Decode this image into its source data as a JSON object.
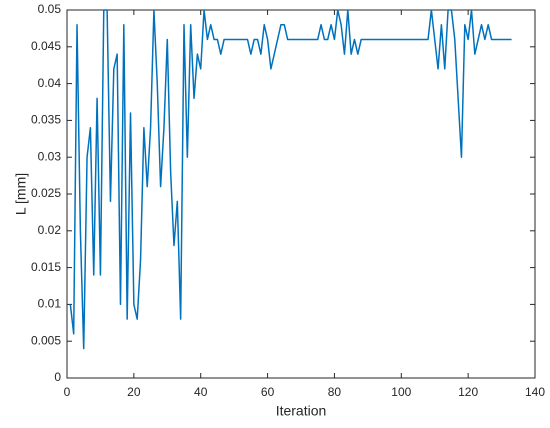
{
  "chart_data": {
    "type": "line",
    "x_label": "Iteration",
    "y_label": "L [mm]",
    "x": [
      1,
      2,
      3,
      4,
      5,
      6,
      7,
      8,
      9,
      10,
      11,
      12,
      13,
      14,
      15,
      16,
      17,
      18,
      19,
      20,
      21,
      22,
      23,
      24,
      25,
      26,
      27,
      28,
      29,
      30,
      31,
      32,
      33,
      34,
      35,
      36,
      37,
      38,
      39,
      40,
      41,
      42,
      43,
      44,
      45,
      46,
      47,
      48,
      49,
      50,
      51,
      52,
      53,
      54,
      55,
      56,
      57,
      58,
      59,
      60,
      61,
      62,
      63,
      64,
      65,
      66,
      67,
      68,
      69,
      70,
      71,
      72,
      73,
      74,
      75,
      76,
      77,
      78,
      79,
      80,
      81,
      82,
      83,
      84,
      85,
      86,
      87,
      88,
      89,
      90,
      91,
      92,
      93,
      94,
      95,
      96,
      97,
      98,
      99,
      100,
      101,
      102,
      103,
      104,
      105,
      106,
      107,
      108,
      109,
      110,
      111,
      112,
      113,
      114,
      115,
      116,
      117,
      118,
      119,
      120,
      121,
      122,
      123,
      124,
      125,
      126,
      127,
      128,
      129,
      130,
      131,
      132,
      133
    ],
    "series": [
      {
        "color": "#0072bd",
        "values": [
          0.01,
          0.006,
          0.048,
          0.02,
          0.004,
          0.03,
          0.034,
          0.014,
          0.038,
          0.014,
          0.05,
          0.05,
          0.024,
          0.042,
          0.044,
          0.01,
          0.048,
          0.008,
          0.036,
          0.01,
          0.008,
          0.016,
          0.034,
          0.026,
          0.034,
          0.05,
          0.04,
          0.026,
          0.034,
          0.046,
          0.028,
          0.018,
          0.024,
          0.008,
          0.048,
          0.03,
          0.048,
          0.038,
          0.044,
          0.042,
          0.05,
          0.046,
          0.048,
          0.046,
          0.046,
          0.044,
          0.046,
          0.046,
          0.046,
          0.046,
          0.046,
          0.046,
          0.046,
          0.046,
          0.044,
          0.046,
          0.046,
          0.044,
          0.048,
          0.046,
          0.042,
          0.044,
          0.046,
          0.048,
          0.048,
          0.046,
          0.046,
          0.046,
          0.046,
          0.046,
          0.046,
          0.046,
          0.046,
          0.046,
          0.046,
          0.048,
          0.046,
          0.046,
          0.048,
          0.046,
          0.05,
          0.048,
          0.044,
          0.05,
          0.044,
          0.046,
          0.044,
          0.046,
          0.046,
          0.046,
          0.046,
          0.046,
          0.046,
          0.046,
          0.046,
          0.046,
          0.046,
          0.046,
          0.046,
          0.046,
          0.046,
          0.046,
          0.046,
          0.046,
          0.046,
          0.046,
          0.046,
          0.046,
          0.05,
          0.046,
          0.042,
          0.048,
          0.042,
          0.05,
          0.05,
          0.046,
          0.038,
          0.03,
          0.048,
          0.046,
          0.05,
          0.044,
          0.046,
          0.048,
          0.046,
          0.048,
          0.046,
          0.046,
          0.046,
          0.046,
          0.046,
          0.046,
          0.046
        ]
      }
    ],
    "xlim": [
      0,
      140
    ],
    "xticks": [
      0,
      20,
      40,
      60,
      80,
      100,
      120,
      140
    ],
    "ylim": [
      0,
      0.05
    ],
    "yticks": [
      0,
      0.005,
      0.01,
      0.015,
      0.02,
      0.025,
      0.03,
      0.035,
      0.04,
      0.045,
      0.05
    ]
  }
}
